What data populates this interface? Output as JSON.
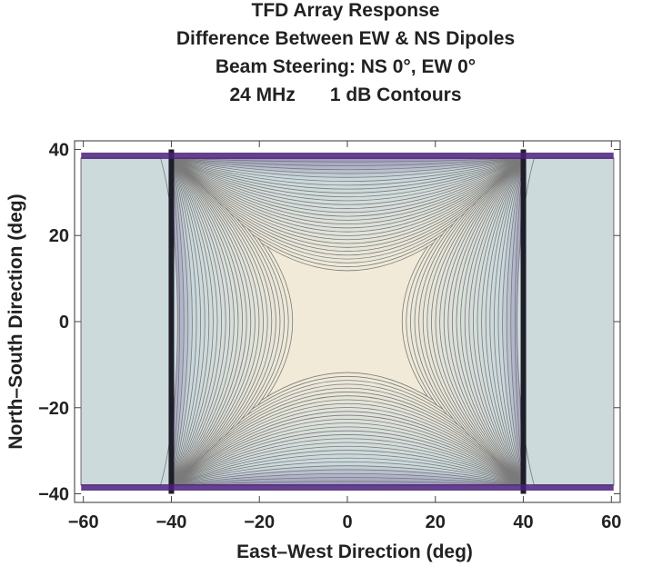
{
  "chart_data": {
    "type": "heatmap",
    "title_lines": [
      "TFD Array Response",
      "Difference Between EW & NS Dipoles",
      "Beam Steering: NS 0°, EW 0°"
    ],
    "frequency_label": "24 MHz",
    "contour_label": "1 dB Contours",
    "xlabel": "East–West Direction (deg)",
    "ylabel": "North–South Direction (deg)",
    "xlim": [
      -62,
      62
    ],
    "ylim": [
      -42,
      42
    ],
    "x_ticks": [
      -60,
      -40,
      -20,
      0,
      20,
      40,
      60
    ],
    "y_ticks": [
      -40,
      -20,
      0,
      20,
      40
    ],
    "x_tick_labels": [
      "−60",
      "−40",
      "−20",
      "0",
      "20",
      "40",
      "60"
    ],
    "y_tick_labels": [
      "−40",
      "−20",
      "0",
      "20",
      "40"
    ],
    "contour_interval_db": 1,
    "grating_lobe_nulls_deg": [
      -40,
      40
    ],
    "color_scale": {
      "high": "#f1ead8",
      "mid": "#c9d8dc",
      "low": "#4a1f7a",
      "contour_line": "#7a7a7a"
    }
  }
}
